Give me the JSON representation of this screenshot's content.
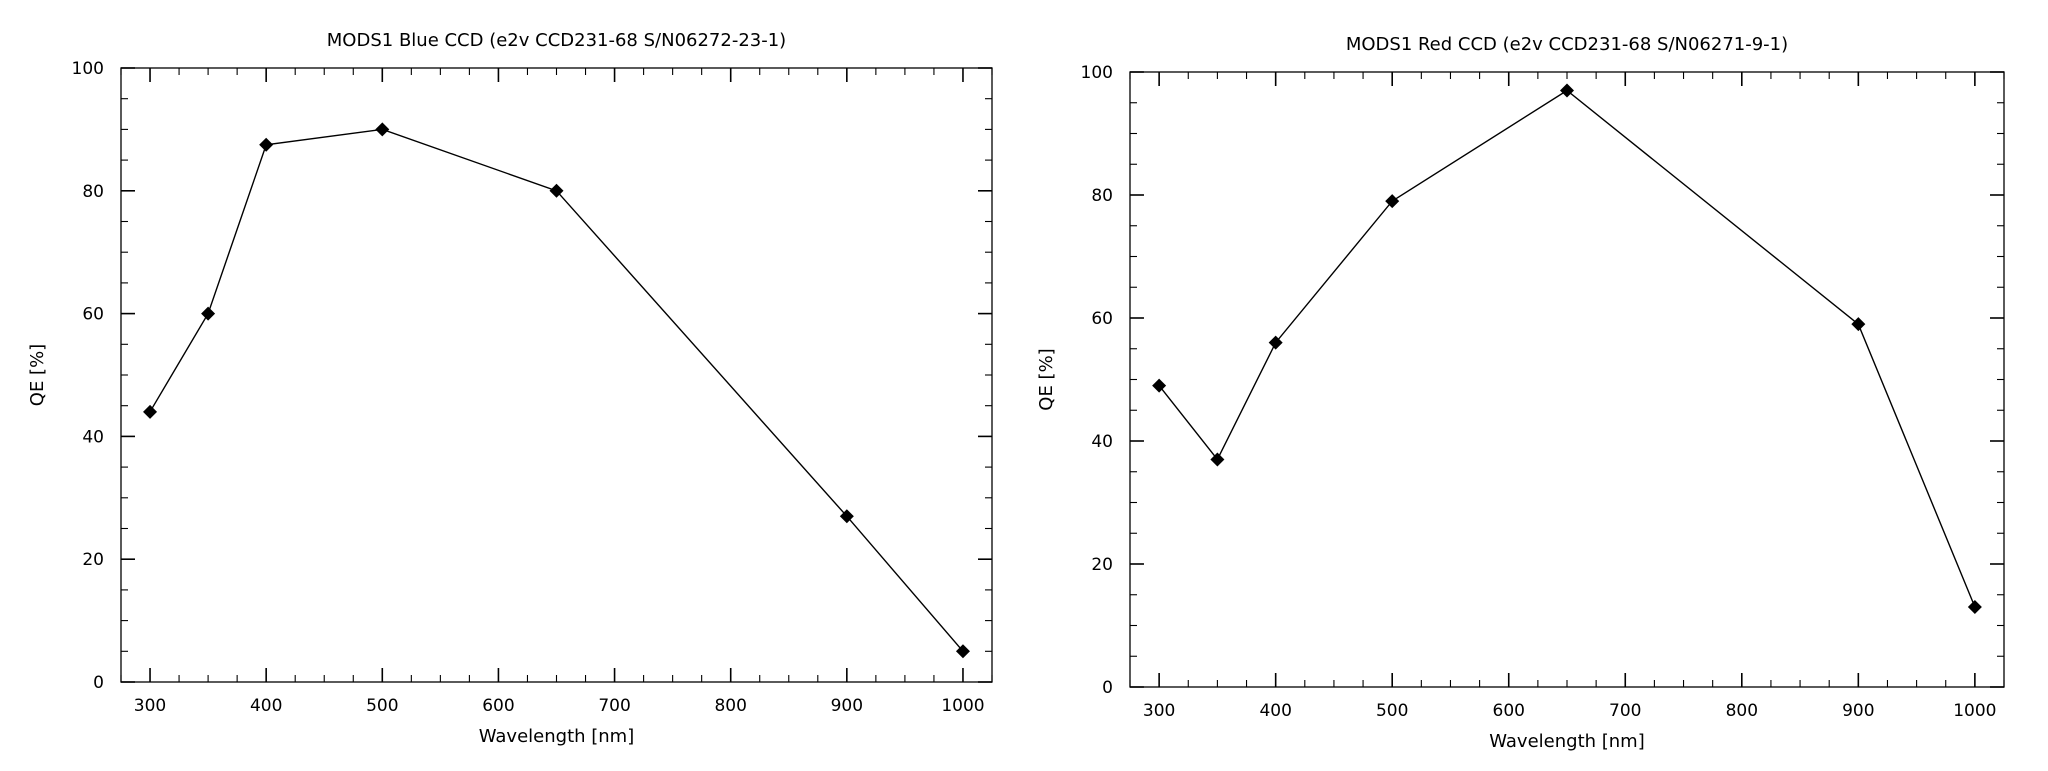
{
  "chart_data": [
    {
      "type": "line",
      "title": "MODS1 Blue CCD (e2v CCD231-68 S/N06272-23-1)",
      "xlabel": "Wavelength [nm]",
      "ylabel": "QE [%]",
      "xlim": [
        275,
        1025
      ],
      "ylim": [
        0,
        100
      ],
      "x_ticks": [
        300,
        400,
        500,
        600,
        700,
        800,
        900,
        1000
      ],
      "y_ticks": [
        0,
        20,
        40,
        60,
        80,
        100
      ],
      "marker": "diamond",
      "grid": false,
      "series": [
        {
          "x": [
            300,
            350,
            400,
            500,
            650,
            900,
            1000
          ],
          "values": [
            44,
            60,
            87.5,
            90,
            80,
            27,
            5
          ]
        }
      ]
    },
    {
      "type": "line",
      "title": "MODS1 Red CCD (e2v CCD231-68 S/N06271-9-1)",
      "xlabel": "Wavelength [nm]",
      "ylabel": "QE [%]",
      "xlim": [
        275,
        1025
      ],
      "ylim": [
        0,
        100
      ],
      "x_ticks": [
        300,
        400,
        500,
        600,
        700,
        800,
        900,
        1000
      ],
      "y_ticks": [
        0,
        20,
        40,
        60,
        80,
        100
      ],
      "marker": "diamond",
      "grid": false,
      "series": [
        {
          "x": [
            300,
            350,
            400,
            500,
            650,
            900,
            1000
          ],
          "values": [
            49,
            37,
            56,
            79,
            97,
            59,
            13
          ]
        }
      ]
    }
  ]
}
